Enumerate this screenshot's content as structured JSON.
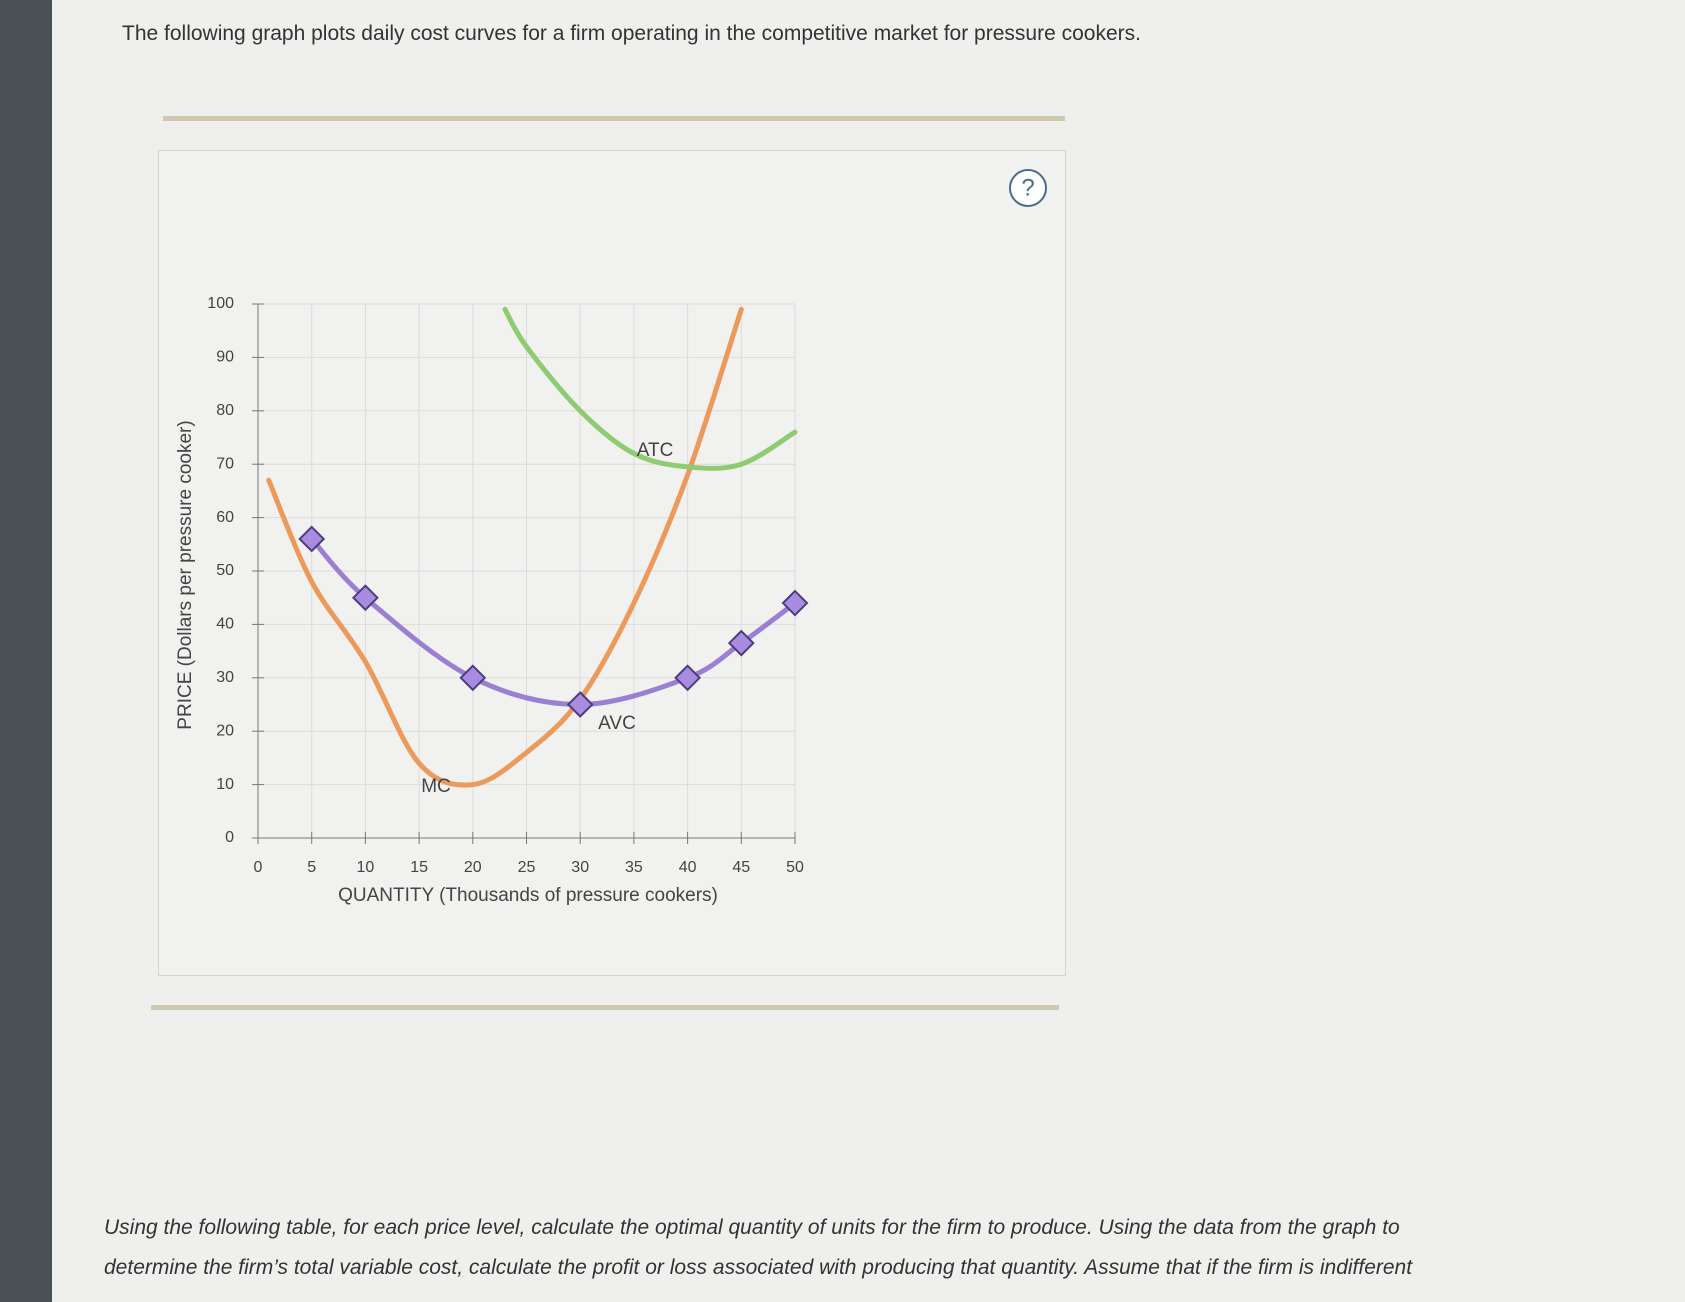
{
  "intro": "The following graph plots daily cost curves for a firm operating in the competitive market for pressure cookers.",
  "chart_data": {
    "type": "line",
    "x_label": "QUANTITY (Thousands of pressure cookers)",
    "y_label": "PRICE (Dollars per pressure cooker)",
    "xlim": [
      0,
      50
    ],
    "ylim": [
      0,
      100
    ],
    "xticks": [
      0,
      5,
      10,
      15,
      20,
      25,
      30,
      35,
      40,
      45,
      50
    ],
    "yticks": [
      0,
      10,
      20,
      30,
      40,
      50,
      60,
      70,
      80,
      90,
      100
    ],
    "grid": true,
    "series": [
      {
        "name": "MC",
        "color": "#eb9a5c",
        "x": [
          1,
          5,
          10,
          15,
          20,
          25,
          30,
          35,
          40,
          45
        ],
        "values": [
          67,
          48,
          33,
          14,
          10,
          16,
          26,
          44,
          68,
          99
        ]
      },
      {
        "name": "ATC",
        "color": "#8fcb73",
        "x": [
          23,
          25,
          30,
          35,
          40,
          45,
          50
        ],
        "values": [
          99,
          92,
          80,
          72,
          69.5,
          70,
          76
        ]
      },
      {
        "name": "AVC",
        "color": "#9b7fd2",
        "marker": "diamond",
        "x": [
          5,
          10,
          20,
          30,
          40,
          45,
          50
        ],
        "values": [
          56,
          45,
          30,
          25,
          30,
          36.5,
          44
        ]
      }
    ]
  },
  "instructions": [
    "Using the following table, for each price level, calculate the optimal quantity of units for the firm to produce. Using the data from the graph to",
    "determine the firm’s total variable cost, calculate the profit or loss associated with producing that quantity. Assume that if the firm is indifferent"
  ]
}
